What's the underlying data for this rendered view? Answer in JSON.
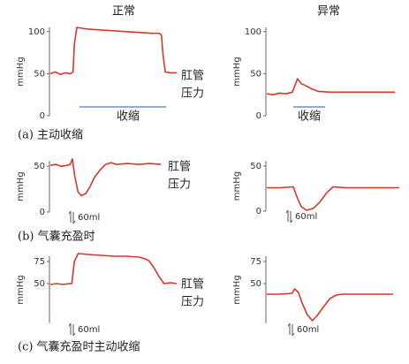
{
  "headers": [
    "正常",
    "异常"
  ],
  "captions": [
    "(a) 主动收缩",
    "(b) 气囊充盈时",
    "(c) 气囊充盈时主动收缩"
  ],
  "chart_data": [
    {
      "type": "line",
      "ylabel": "mmHg",
      "ylim": [
        0,
        105
      ],
      "yticks": [
        0,
        50,
        100
      ],
      "xlim": [
        0,
        100
      ],
      "color": "#d9372a",
      "x": [
        0,
        4,
        8,
        12,
        16,
        18,
        19,
        21,
        25,
        30,
        40,
        50,
        60,
        70,
        80,
        86,
        88,
        89,
        91,
        95,
        100
      ],
      "values": [
        50,
        52,
        49,
        51,
        50,
        52,
        85,
        105,
        104,
        103,
        102,
        101,
        100,
        99,
        98,
        98,
        96,
        75,
        52,
        51,
        51
      ],
      "annotation": [
        "肛管",
        "压力"
      ],
      "contraction_label": "收缩"
    },
    {
      "type": "line",
      "ylabel": "mmHg",
      "ylim": [
        0,
        105
      ],
      "yticks": [
        0,
        50,
        100
      ],
      "xlim": [
        0,
        100
      ],
      "color": "#d9372a",
      "x": [
        0,
        5,
        10,
        15,
        20,
        22,
        24,
        27,
        30,
        35,
        40,
        50,
        60,
        70,
        80,
        90,
        100
      ],
      "values": [
        26,
        25,
        27,
        26,
        28,
        36,
        44,
        38,
        36,
        32,
        29,
        28,
        28,
        28,
        28,
        28,
        28
      ],
      "contraction_label": "收缩"
    },
    {
      "type": "line",
      "ylabel": "mmHg",
      "ylim": [
        0,
        56
      ],
      "yticks": [
        0,
        50
      ],
      "xlim": [
        0,
        100
      ],
      "color": "#d9372a",
      "x": [
        0,
        5,
        10,
        15,
        18,
        20,
        22,
        25,
        28,
        32,
        36,
        40,
        45,
        50,
        55,
        60,
        70,
        80,
        90,
        100
      ],
      "values": [
        51,
        52,
        50,
        51,
        52,
        58,
        40,
        22,
        18,
        20,
        28,
        38,
        46,
        52,
        54,
        52,
        53,
        52,
        53,
        52
      ],
      "annotation": [
        "肛管",
        "压力"
      ],
      "volume_label": "60ml"
    },
    {
      "type": "line",
      "ylabel": "mmHg",
      "ylim": [
        0,
        56
      ],
      "yticks": [
        0,
        50
      ],
      "xlim": [
        0,
        100
      ],
      "color": "#d9372a",
      "x": [
        0,
        10,
        20,
        23,
        26,
        30,
        35,
        40,
        45,
        50,
        60,
        70,
        80,
        90,
        100
      ],
      "values": [
        26,
        26,
        27,
        15,
        5,
        1,
        3,
        10,
        20,
        27,
        26,
        26,
        26,
        26,
        26
      ],
      "volume_label": "60ml"
    },
    {
      "type": "line",
      "ylabel": "mmHg",
      "ylim": [
        5,
        81
      ],
      "yticks": [
        50,
        75
      ],
      "xlim": [
        0,
        100
      ],
      "color": "#d9372a",
      "x": [
        0,
        5,
        10,
        15,
        17,
        19,
        22,
        30,
        40,
        50,
        60,
        70,
        75,
        78,
        82,
        86,
        90,
        95,
        100
      ],
      "values": [
        49,
        50,
        49,
        50,
        50,
        75,
        84,
        83,
        82,
        81,
        81,
        80,
        78,
        76,
        68,
        58,
        50,
        51,
        50
      ],
      "annotation": [
        "肛管",
        "压力"
      ],
      "volume_label": "60ml"
    },
    {
      "type": "line",
      "ylabel": "mmHg",
      "ylim": [
        5,
        81
      ],
      "yticks": [
        50,
        75
      ],
      "xlim": [
        0,
        100
      ],
      "color": "#d9372a",
      "x": [
        0,
        10,
        20,
        22,
        25,
        28,
        32,
        36,
        40,
        45,
        50,
        55,
        60,
        70,
        80,
        90,
        100
      ],
      "values": [
        38,
        38,
        39,
        44,
        40,
        28,
        15,
        8,
        14,
        24,
        33,
        37,
        38,
        38,
        38,
        38,
        38
      ],
      "volume_label": "60ml"
    }
  ]
}
